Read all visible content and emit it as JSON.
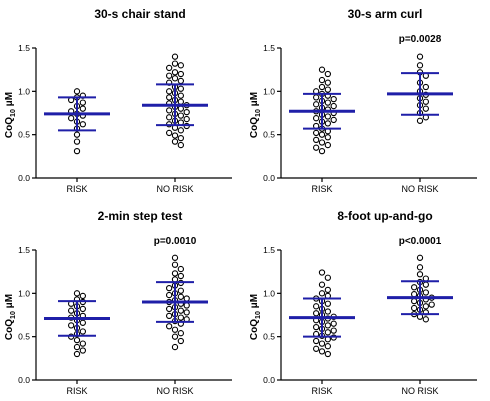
{
  "colors": {
    "summary_bar": "#1f1fa8",
    "axis": "#000000",
    "point_stroke": "#000000",
    "point_fill": "#ffffff"
  },
  "y_axis": {
    "label_main": "CoQ",
    "label_sub": "10",
    "label_unit": " μM",
    "ticks": [
      "0.0",
      "0.5",
      "1.0",
      "1.5"
    ]
  },
  "chart_data": [
    {
      "type": "scatter",
      "title": "30-s chair stand",
      "annotation": "",
      "categories": [
        "RISK",
        "NO RISK"
      ],
      "ylim": [
        0,
        1.5
      ],
      "yticks": [
        0,
        0.5,
        1.0,
        1.5
      ],
      "grid": false,
      "groups": [
        {
          "category": "RISK",
          "mean": 0.74,
          "sd_low": 0.55,
          "sd_high": 0.93,
          "values": [
            1.0,
            0.95,
            0.93,
            0.9,
            0.87,
            0.83,
            0.8,
            0.77,
            0.74,
            0.72,
            0.69,
            0.65,
            0.62,
            0.57,
            0.5,
            0.42,
            0.31
          ]
        },
        {
          "category": "NO RISK",
          "mean": 0.84,
          "sd_low": 0.61,
          "sd_high": 1.08,
          "values": [
            1.4,
            1.32,
            1.3,
            1.27,
            1.22,
            1.2,
            1.18,
            1.15,
            1.12,
            1.1,
            1.05,
            1.03,
            1.0,
            0.98,
            0.95,
            0.93,
            0.9,
            0.88,
            0.86,
            0.84,
            0.82,
            0.8,
            0.78,
            0.76,
            0.74,
            0.72,
            0.7,
            0.68,
            0.66,
            0.64,
            0.62,
            0.6,
            0.58,
            0.55,
            0.52,
            0.49,
            0.46,
            0.42,
            0.38
          ]
        }
      ]
    },
    {
      "type": "scatter",
      "title": "30-s arm curl",
      "annotation": "p=0.0028",
      "categories": [
        "RISK",
        "NO RISK"
      ],
      "ylim": [
        0,
        1.5
      ],
      "yticks": [
        0,
        0.5,
        1.0,
        1.5
      ],
      "grid": false,
      "groups": [
        {
          "category": "RISK",
          "mean": 0.77,
          "sd_low": 0.57,
          "sd_high": 0.97,
          "values": [
            1.25,
            1.2,
            1.13,
            1.1,
            1.05,
            1.02,
            1.0,
            0.97,
            0.95,
            0.93,
            0.91,
            0.89,
            0.87,
            0.85,
            0.83,
            0.81,
            0.79,
            0.77,
            0.75,
            0.73,
            0.71,
            0.69,
            0.67,
            0.65,
            0.63,
            0.6,
            0.57,
            0.54,
            0.52,
            0.5,
            0.47,
            0.44,
            0.41,
            0.38,
            0.35,
            0.31
          ]
        },
        {
          "category": "NO RISK",
          "mean": 0.97,
          "sd_low": 0.73,
          "sd_high": 1.21,
          "values": [
            1.4,
            1.3,
            1.22,
            1.18,
            1.1,
            1.05,
            1.0,
            0.96,
            0.92,
            0.88,
            0.84,
            0.8,
            0.75,
            0.7,
            0.66
          ]
        }
      ]
    },
    {
      "type": "scatter",
      "title": "2-min step test",
      "annotation": "p=0.0010",
      "categories": [
        "RISK",
        "NO RISK"
      ],
      "ylim": [
        0,
        1.5
      ],
      "yticks": [
        0,
        0.5,
        1.0,
        1.5
      ],
      "grid": false,
      "groups": [
        {
          "category": "RISK",
          "mean": 0.71,
          "sd_low": 0.51,
          "sd_high": 0.91,
          "values": [
            1.0,
            0.97,
            0.93,
            0.9,
            0.88,
            0.85,
            0.82,
            0.8,
            0.77,
            0.74,
            0.72,
            0.69,
            0.66,
            0.63,
            0.6,
            0.56,
            0.53,
            0.5,
            0.46,
            0.42,
            0.38,
            0.34,
            0.3
          ]
        },
        {
          "category": "NO RISK",
          "mean": 0.9,
          "sd_low": 0.67,
          "sd_high": 1.13,
          "values": [
            1.41,
            1.33,
            1.28,
            1.23,
            1.2,
            1.16,
            1.12,
            1.09,
            1.06,
            1.03,
            1.0,
            0.98,
            0.96,
            0.94,
            0.92,
            0.9,
            0.88,
            0.86,
            0.84,
            0.82,
            0.8,
            0.78,
            0.76,
            0.74,
            0.72,
            0.7,
            0.68,
            0.65,
            0.62,
            0.58,
            0.54,
            0.5,
            0.45,
            0.38
          ]
        }
      ]
    },
    {
      "type": "scatter",
      "title": "8-foot up-and-go",
      "annotation": "p<0.0001",
      "categories": [
        "RISK",
        "NO RISK"
      ],
      "ylim": [
        0,
        1.5
      ],
      "yticks": [
        0,
        0.5,
        1.0,
        1.5
      ],
      "grid": false,
      "groups": [
        {
          "category": "RISK",
          "mean": 0.72,
          "sd_low": 0.5,
          "sd_high": 0.94,
          "values": [
            1.24,
            1.18,
            1.1,
            1.04,
            1.0,
            0.97,
            0.94,
            0.91,
            0.88,
            0.85,
            0.82,
            0.79,
            0.77,
            0.75,
            0.73,
            0.71,
            0.69,
            0.67,
            0.65,
            0.63,
            0.61,
            0.59,
            0.57,
            0.55,
            0.53,
            0.51,
            0.49,
            0.47,
            0.45,
            0.42,
            0.39,
            0.36,
            0.33,
            0.3
          ]
        },
        {
          "category": "NO RISK",
          "mean": 0.95,
          "sd_low": 0.76,
          "sd_high": 1.14,
          "values": [
            1.41,
            1.3,
            1.22,
            1.17,
            1.13,
            1.1,
            1.07,
            1.04,
            1.01,
            0.99,
            0.97,
            0.95,
            0.93,
            0.91,
            0.89,
            0.87,
            0.85,
            0.83,
            0.81,
            0.78,
            0.76,
            0.73,
            0.7
          ]
        }
      ]
    }
  ]
}
